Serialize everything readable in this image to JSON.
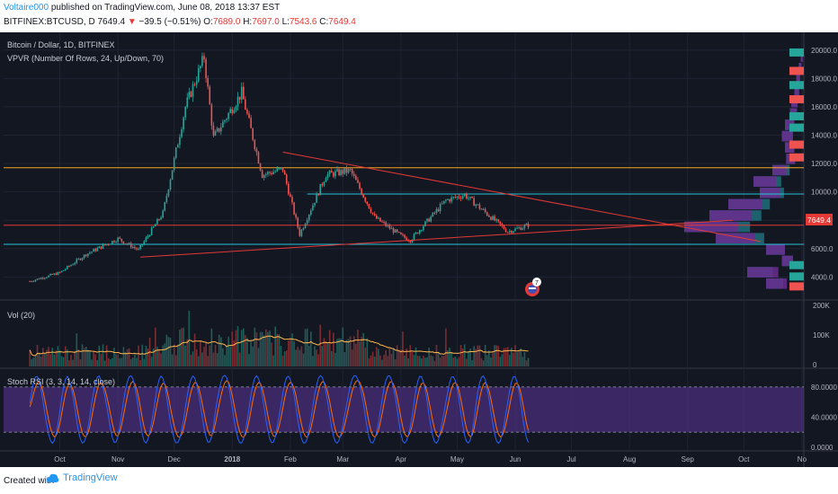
{
  "header": {
    "user": "Voltaire000",
    "published": " published on TradingView.com, June 08, 2018 13:37 EST",
    "symbol": "BITFINEX:BTCUSD, D",
    "last": "7649.4",
    "change_arrow": "▼",
    "change": "−39.5 (−0.51%)",
    "o_label": "O:",
    "o": "7689.0",
    "h_label": "H:",
    "h": "7697.0",
    "l_label": "L:",
    "l": "7543.6",
    "c_label": "C:",
    "c": "7649.4"
  },
  "chart_data": {
    "type": "candlestick",
    "title": "Bitcoin / Dollar, 1D, BITFINEX",
    "indicator_vpvr": "VPVR (Number Of Rows, 24, Up/Down, 70)",
    "indicator_vol": "Vol (20)",
    "indicator_rsi": "Stoch RSI (3, 3, 14, 14, close)",
    "price_axis": [
      "20000.0",
      "18000.0",
      "16000.0",
      "14000.0",
      "12000.0",
      "10000.0",
      "8000.0",
      "6000.0",
      "4000.0"
    ],
    "price_ylim": [
      2500,
      21000
    ],
    "vol_axis": [
      "200K",
      "100K",
      "0"
    ],
    "rsi_axis": [
      "80.0000",
      "40.0000",
      "0.0000"
    ],
    "x_ticks": [
      "Oct",
      "Nov",
      "Dec",
      "2018",
      "Feb",
      "Mar",
      "Apr",
      "May",
      "Jun",
      "Jul",
      "Aug",
      "Sep",
      "Oct",
      "No"
    ],
    "last_price_label": "7649.4",
    "price_series": [
      {
        "date": "2017-09-15",
        "close": 3700
      },
      {
        "date": "2017-10-01",
        "close": 4300
      },
      {
        "date": "2017-10-15",
        "close": 5600
      },
      {
        "date": "2017-11-01",
        "close": 6700
      },
      {
        "date": "2017-11-12",
        "close": 5900
      },
      {
        "date": "2017-11-25",
        "close": 8500
      },
      {
        "date": "2017-12-07",
        "close": 16000
      },
      {
        "date": "2017-12-17",
        "close": 19500
      },
      {
        "date": "2017-12-22",
        "close": 13800
      },
      {
        "date": "2018-01-06",
        "close": 17000
      },
      {
        "date": "2018-01-17",
        "close": 11200
      },
      {
        "date": "2018-01-28",
        "close": 11600
      },
      {
        "date": "2018-02-06",
        "close": 7000
      },
      {
        "date": "2018-02-20",
        "close": 11200
      },
      {
        "date": "2018-03-05",
        "close": 11500
      },
      {
        "date": "2018-03-18",
        "close": 8200
      },
      {
        "date": "2018-04-01",
        "close": 6900
      },
      {
        "date": "2018-04-06",
        "close": 6600
      },
      {
        "date": "2018-04-25",
        "close": 9400
      },
      {
        "date": "2018-05-05",
        "close": 9800
      },
      {
        "date": "2018-05-28",
        "close": 7200
      },
      {
        "date": "2018-06-08",
        "close": 7649
      }
    ],
    "horizontal_lines": [
      {
        "price": 11700,
        "color": "#f5a623"
      },
      {
        "price": 9850,
        "color": "#26c6da"
      },
      {
        "price": 7650,
        "color": "#e53935"
      },
      {
        "price": 6300,
        "color": "#26c6da"
      }
    ],
    "trend_lines": [
      {
        "from": {
          "date": "2018-01-28",
          "price": 12800
        },
        "to": {
          "date": "2018-10-10",
          "price": 6500
        },
        "color": "#e53935"
      },
      {
        "from": {
          "date": "2017-11-13",
          "price": 5400
        },
        "to": {
          "date": "2018-09-25",
          "price": 8000
        },
        "color": "#e53935"
      }
    ],
    "colors": {
      "up": "#26a69a",
      "down": "#ef5350",
      "bg": "#131722",
      "vpvr_up": "#1e6e7a",
      "vpvr_down": "#6a2d8f",
      "rsi_k": "#2962ff",
      "rsi_d": "#ff6d00",
      "rsi_band": "#4a2d7a"
    }
  },
  "footer": {
    "created": "Created with",
    "brand": "TradingView"
  }
}
